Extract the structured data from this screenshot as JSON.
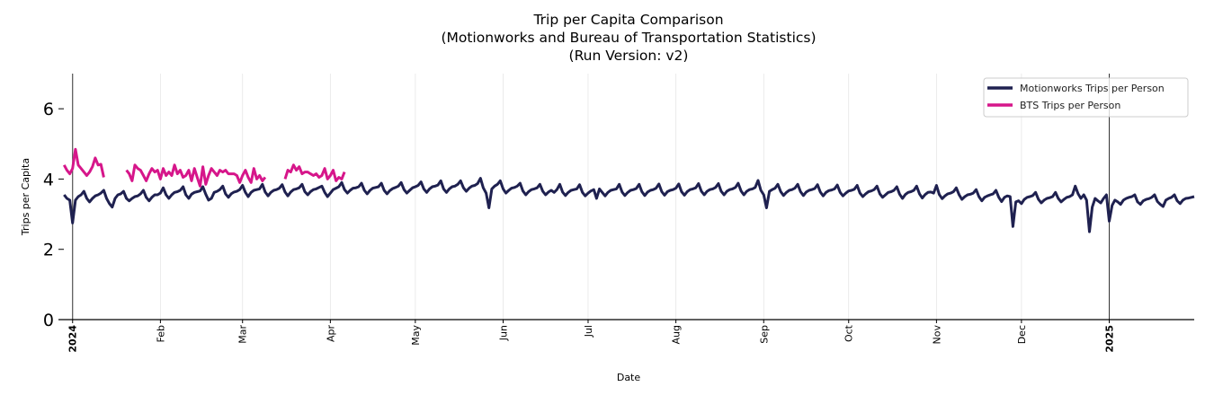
{
  "chart_data": {
    "type": "line",
    "title": [
      "Trip per Capita Comparison",
      "(Motionworks and Bureau of Transportation Statistics)",
      "(Run Version: v2)"
    ],
    "xlabel": "Date",
    "ylabel": "Trips per Capita",
    "ylim": [
      0,
      7
    ],
    "yticks": [
      0,
      2,
      4,
      6
    ],
    "xlim": [
      "2023-12-27",
      "2025-01-31"
    ],
    "xticks": [
      {
        "date": "2024-01-01",
        "label": "2024",
        "year": true
      },
      {
        "date": "2024-02-01",
        "label": "Feb"
      },
      {
        "date": "2024-03-01",
        "label": "Mar"
      },
      {
        "date": "2024-04-01",
        "label": "Apr"
      },
      {
        "date": "2024-05-01",
        "label": "May"
      },
      {
        "date": "2024-06-01",
        "label": "Jun"
      },
      {
        "date": "2024-07-01",
        "label": "Jul"
      },
      {
        "date": "2024-08-01",
        "label": "Aug"
      },
      {
        "date": "2024-09-01",
        "label": "Sep"
      },
      {
        "date": "2024-10-01",
        "label": "Oct"
      },
      {
        "date": "2024-11-01",
        "label": "Nov"
      },
      {
        "date": "2024-12-01",
        "label": "Dec"
      },
      {
        "date": "2025-01-01",
        "label": "2025",
        "year": true
      }
    ],
    "year_lines": [
      "2024-01-01",
      "2025-01-01"
    ],
    "grid": "vertical, monthly",
    "legend_position": "top-right",
    "series": [
      {
        "name": "Motionworks Trips per Person",
        "color": "#1f2150",
        "start_date": "2023-12-29",
        "frequency": "daily",
        "values": [
          3.55,
          3.45,
          3.4,
          2.75,
          3.4,
          3.5,
          3.55,
          3.65,
          3.45,
          3.35,
          3.45,
          3.52,
          3.55,
          3.6,
          3.68,
          3.45,
          3.3,
          3.2,
          3.45,
          3.55,
          3.58,
          3.65,
          3.45,
          3.38,
          3.45,
          3.5,
          3.52,
          3.58,
          3.68,
          3.48,
          3.38,
          3.48,
          3.55,
          3.55,
          3.6,
          3.75,
          3.55,
          3.45,
          3.55,
          3.62,
          3.64,
          3.68,
          3.78,
          3.55,
          3.45,
          3.57,
          3.62,
          3.64,
          3.66,
          3.78,
          3.57,
          3.4,
          3.45,
          3.62,
          3.65,
          3.7,
          3.8,
          3.58,
          3.48,
          3.58,
          3.63,
          3.65,
          3.7,
          3.82,
          3.62,
          3.5,
          3.62,
          3.68,
          3.7,
          3.72,
          3.85,
          3.63,
          3.52,
          3.62,
          3.68,
          3.7,
          3.74,
          3.84,
          3.63,
          3.52,
          3.63,
          3.7,
          3.72,
          3.75,
          3.85,
          3.64,
          3.55,
          3.64,
          3.7,
          3.72,
          3.76,
          3.8,
          3.62,
          3.5,
          3.6,
          3.7,
          3.74,
          3.78,
          3.9,
          3.7,
          3.6,
          3.68,
          3.74,
          3.75,
          3.78,
          3.88,
          3.68,
          3.58,
          3.68,
          3.74,
          3.76,
          3.78,
          3.88,
          3.68,
          3.58,
          3.67,
          3.73,
          3.76,
          3.8,
          3.9,
          3.7,
          3.6,
          3.68,
          3.75,
          3.78,
          3.82,
          3.92,
          3.72,
          3.62,
          3.72,
          3.78,
          3.8,
          3.83,
          3.95,
          3.72,
          3.62,
          3.72,
          3.78,
          3.8,
          3.85,
          3.95,
          3.75,
          3.65,
          3.74,
          3.8,
          3.82,
          3.87,
          4.02,
          3.75,
          3.6,
          3.18,
          3.72,
          3.8,
          3.85,
          3.95,
          3.72,
          3.6,
          3.68,
          3.74,
          3.76,
          3.8,
          3.88,
          3.66,
          3.55,
          3.64,
          3.7,
          3.72,
          3.75,
          3.85,
          3.65,
          3.55,
          3.63,
          3.68,
          3.62,
          3.7,
          3.85,
          3.63,
          3.53,
          3.62,
          3.68,
          3.7,
          3.72,
          3.84,
          3.62,
          3.52,
          3.6,
          3.66,
          3.7,
          3.45,
          3.72,
          3.62,
          3.52,
          3.62,
          3.68,
          3.7,
          3.72,
          3.85,
          3.63,
          3.53,
          3.62,
          3.68,
          3.7,
          3.73,
          3.85,
          3.64,
          3.53,
          3.63,
          3.68,
          3.7,
          3.74,
          3.86,
          3.64,
          3.54,
          3.64,
          3.68,
          3.7,
          3.74,
          3.86,
          3.64,
          3.54,
          3.64,
          3.7,
          3.72,
          3.75,
          3.87,
          3.65,
          3.55,
          3.65,
          3.7,
          3.72,
          3.76,
          3.87,
          3.65,
          3.55,
          3.65,
          3.7,
          3.72,
          3.76,
          3.88,
          3.66,
          3.55,
          3.65,
          3.7,
          3.72,
          3.76,
          3.96,
          3.68,
          3.55,
          3.18,
          3.65,
          3.7,
          3.74,
          3.85,
          3.64,
          3.53,
          3.62,
          3.68,
          3.7,
          3.74,
          3.85,
          3.64,
          3.53,
          3.63,
          3.68,
          3.7,
          3.73,
          3.84,
          3.63,
          3.52,
          3.62,
          3.67,
          3.69,
          3.72,
          3.83,
          3.62,
          3.52,
          3.6,
          3.66,
          3.68,
          3.71,
          3.82,
          3.6,
          3.5,
          3.58,
          3.64,
          3.66,
          3.7,
          3.8,
          3.58,
          3.48,
          3.55,
          3.62,
          3.64,
          3.68,
          3.78,
          3.57,
          3.45,
          3.56,
          3.62,
          3.64,
          3.68,
          3.8,
          3.58,
          3.46,
          3.56,
          3.62,
          3.63,
          3.6,
          3.82,
          3.56,
          3.44,
          3.52,
          3.58,
          3.6,
          3.64,
          3.75,
          3.55,
          3.42,
          3.5,
          3.55,
          3.57,
          3.6,
          3.7,
          3.5,
          3.38,
          3.48,
          3.52,
          3.55,
          3.58,
          3.68,
          3.48,
          3.36,
          3.48,
          3.52,
          3.5,
          2.65,
          3.35,
          3.38,
          3.3,
          3.42,
          3.48,
          3.5,
          3.53,
          3.62,
          3.42,
          3.32,
          3.4,
          3.45,
          3.47,
          3.5,
          3.62,
          3.45,
          3.35,
          3.42,
          3.48,
          3.5,
          3.55,
          3.8,
          3.58,
          3.45,
          3.55,
          3.4,
          2.5,
          3.2,
          3.45,
          3.38,
          3.32,
          3.45,
          3.55,
          2.8,
          3.25,
          3.4,
          3.35,
          3.28,
          3.4,
          3.45,
          3.48,
          3.5,
          3.55,
          3.35,
          3.28,
          3.38,
          3.42,
          3.44,
          3.48,
          3.55,
          3.36,
          3.28,
          3.22,
          3.4,
          3.45,
          3.48,
          3.55,
          3.38,
          3.3,
          3.4,
          3.45,
          3.46,
          3.48,
          3.5
        ]
      },
      {
        "name": "BTS Trips per Person",
        "color": "#d6168a",
        "start_date": "2023-12-29",
        "frequency": "daily",
        "values": [
          4.4,
          4.25,
          4.15,
          4.3,
          4.85,
          4.4,
          4.3,
          4.2,
          4.1,
          4.2,
          4.35,
          4.6,
          4.4,
          4.42,
          4.05,
          null,
          null,
          null,
          null,
          null,
          null,
          null,
          4.25,
          4.15,
          3.95,
          4.4,
          4.3,
          4.25,
          4.1,
          3.95,
          4.15,
          4.3,
          4.2,
          4.25,
          4.0,
          4.3,
          4.1,
          4.2,
          4.1,
          4.4,
          4.15,
          4.25,
          4.05,
          4.1,
          4.25,
          3.95,
          4.3,
          4.05,
          3.8,
          4.35,
          3.85,
          4.1,
          4.3,
          4.2,
          4.1,
          4.25,
          4.2,
          4.25,
          4.15,
          4.15,
          4.15,
          4.1,
          3.9,
          4.1,
          4.25,
          4.05,
          3.9,
          4.3,
          4.0,
          4.1,
          3.95,
          4.05,
          null,
          null,
          null,
          null,
          null,
          null,
          4.0,
          4.25,
          4.2,
          4.4,
          4.25,
          4.35,
          4.15,
          4.2,
          4.2,
          4.15,
          4.1,
          4.15,
          4.05,
          4.1,
          4.3,
          4.0,
          4.1,
          4.25,
          3.95,
          4.05,
          4.0,
          4.2
        ]
      }
    ]
  }
}
